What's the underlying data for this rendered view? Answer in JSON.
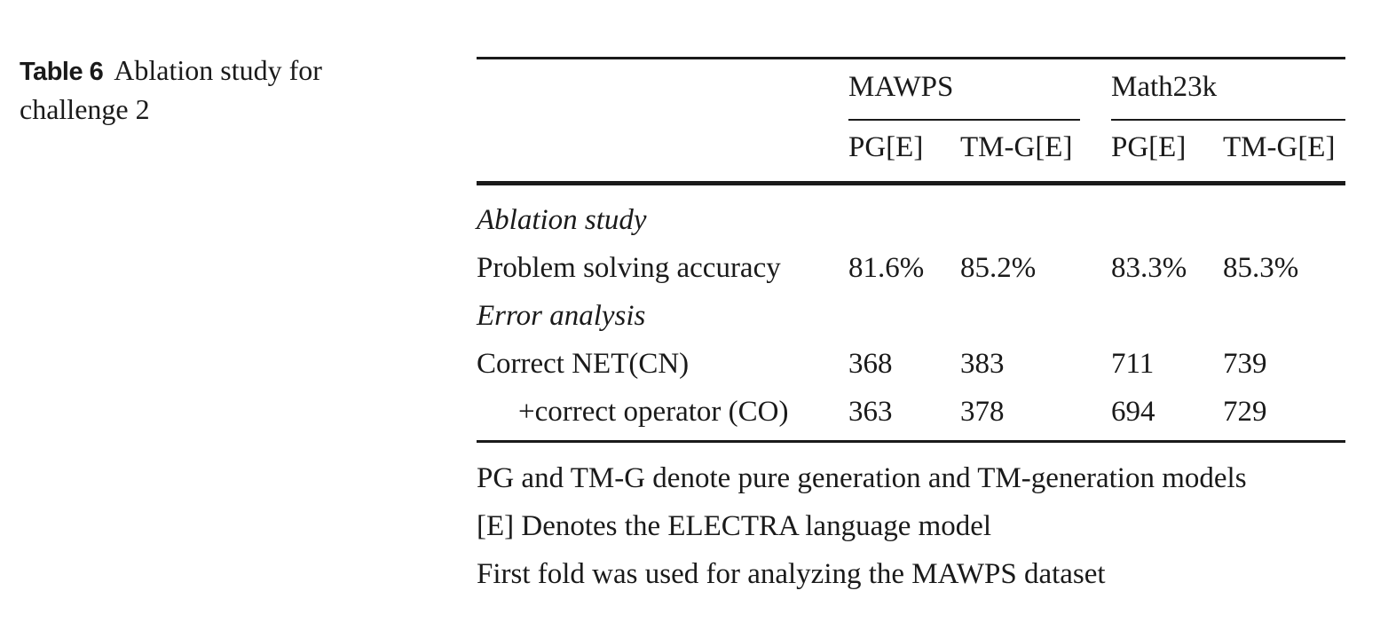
{
  "caption": {
    "label": "Table 6",
    "text": "Ablation study for challenge 2"
  },
  "table": {
    "group_headers": [
      "MAWPS",
      "Math23k"
    ],
    "column_headers": [
      "PG[E]",
      "TM-G[E]",
      "PG[E]",
      "TM-G[E]"
    ],
    "sections": {
      "ablation": "Ablation study",
      "error": "Error analysis"
    },
    "rows": [
      {
        "label": "Problem solving accuracy",
        "values": [
          "81.6%",
          "85.2%",
          "83.3%",
          "85.3%"
        ]
      },
      {
        "label": "Correct NET(CN)",
        "values": [
          "368",
          "383",
          "711",
          "739"
        ]
      },
      {
        "label": "+correct operator (CO)",
        "values": [
          "363",
          "378",
          "694",
          "729"
        ]
      }
    ]
  },
  "footnotes": [
    "PG and TM-G denote pure generation and TM-generation models",
    "[E] Denotes the ELECTRA language model",
    "First fold was used for analyzing the MAWPS dataset"
  ]
}
